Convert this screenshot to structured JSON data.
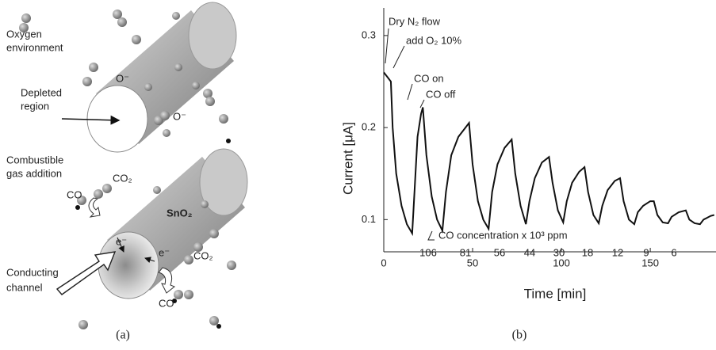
{
  "diagram": {
    "labels": {
      "oxygen": [
        "Oxygen",
        "environment"
      ],
      "o_minus_1": "O⁻",
      "o_minus_2": "O⁻",
      "depleted": [
        "Depleted",
        "region"
      ],
      "combustible": [
        "Combustible",
        "gas addition"
      ],
      "co2_1": "CO₂",
      "co_1": "CO",
      "sno2": "SnO₂",
      "e_1": "e⁻",
      "e_2": "e⁻",
      "co2_2": "CO₂",
      "co_2": "CO",
      "conducting": [
        "Conducting",
        "channel"
      ]
    }
  },
  "captions": [
    "(a)",
    "(b)"
  ],
  "chart_data": {
    "type": "line",
    "x_label": "Time [min]",
    "y_label": "Current [μA]",
    "color": "#111",
    "x": [
      0,
      2,
      4,
      5,
      7,
      10,
      13,
      16,
      17,
      19,
      21,
      22,
      24,
      27,
      30,
      33,
      35,
      38,
      42,
      46,
      48,
      50,
      53,
      56,
      59,
      61,
      64,
      68,
      72,
      74,
      77,
      80,
      82,
      85,
      89,
      93,
      95,
      98,
      101,
      103,
      106,
      110,
      113,
      115,
      118,
      121,
      123,
      126,
      130,
      133,
      135,
      138,
      141,
      143,
      146,
      150,
      152,
      154,
      157,
      160,
      162,
      166,
      170,
      172,
      175,
      178,
      180,
      184,
      186
    ],
    "values": [
      0.26,
      0.255,
      0.25,
      0.2,
      0.15,
      0.115,
      0.095,
      0.085,
      0.12,
      0.19,
      0.215,
      0.222,
      0.17,
      0.125,
      0.1,
      0.088,
      0.13,
      0.17,
      0.19,
      0.2,
      0.205,
      0.16,
      0.12,
      0.1,
      0.09,
      0.13,
      0.16,
      0.178,
      0.187,
      0.15,
      0.115,
      0.095,
      0.12,
      0.145,
      0.162,
      0.168,
      0.14,
      0.11,
      0.097,
      0.12,
      0.14,
      0.152,
      0.157,
      0.13,
      0.105,
      0.096,
      0.115,
      0.132,
      0.142,
      0.145,
      0.12,
      0.1,
      0.095,
      0.108,
      0.115,
      0.12,
      0.12,
      0.105,
      0.097,
      0.096,
      0.103,
      0.108,
      0.11,
      0.1,
      0.096,
      0.095,
      0.1,
      0.104,
      0.105
    ],
    "xlim": [
      0,
      187
    ],
    "ylim": [
      0.065,
      0.33
    ],
    "xticks": [
      0,
      50,
      100,
      150
    ],
    "yticks": [
      0.1,
      0.2,
      0.3
    ],
    "annotations": [
      "Dry N₂ flow",
      "add O₂ 10%",
      "CO on",
      "CO off",
      "CO concentration x 10³ ppm"
    ],
    "concentrations": [
      "106",
      "81",
      "56",
      "44",
      "30",
      "18",
      "12",
      "9",
      "6"
    ]
  }
}
